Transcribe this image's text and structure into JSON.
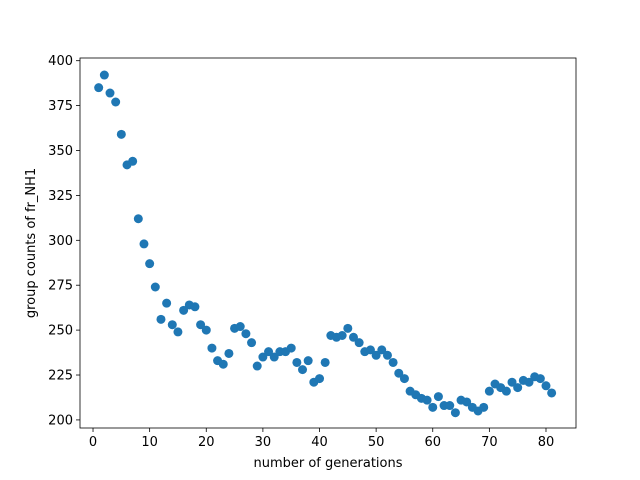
{
  "chart_data": {
    "type": "scatter",
    "title": "",
    "xlabel": "number of generations",
    "ylabel": "group counts of fr_NH1",
    "xlim": [
      -2.3,
      85.3
    ],
    "ylim": [
      195.5,
      401.5
    ],
    "xticks": [
      0,
      10,
      20,
      30,
      40,
      50,
      60,
      70,
      80
    ],
    "yticks": [
      200,
      225,
      250,
      275,
      300,
      325,
      350,
      375,
      400
    ],
    "grid": false,
    "marker_color": "#1f77b4",
    "series": [
      {
        "name": "fr_NH1",
        "x": [
          1,
          2,
          3,
          4,
          5,
          6,
          7,
          8,
          9,
          10,
          11,
          12,
          13,
          14,
          15,
          16,
          17,
          18,
          19,
          20,
          21,
          22,
          23,
          24,
          25,
          26,
          27,
          28,
          29,
          30,
          31,
          32,
          33,
          34,
          35,
          36,
          37,
          38,
          39,
          40,
          41,
          42,
          43,
          44,
          45,
          46,
          47,
          48,
          49,
          50,
          51,
          52,
          53,
          54,
          55,
          56,
          57,
          58,
          59,
          60,
          61,
          62,
          63,
          64,
          65,
          66,
          67,
          68,
          69,
          70,
          71,
          72,
          73,
          74,
          75,
          76,
          77,
          78,
          79,
          80,
          81
        ],
        "y": [
          385,
          392,
          382,
          377,
          359,
          342,
          344,
          312,
          298,
          287,
          274,
          256,
          265,
          253,
          249,
          261,
          264,
          263,
          253,
          250,
          240,
          233,
          231,
          237,
          251,
          252,
          248,
          243,
          230,
          235,
          238,
          235,
          238,
          238,
          240,
          232,
          228,
          233,
          221,
          223,
          232,
          247,
          246,
          247,
          251,
          246,
          243,
          238,
          239,
          236,
          239,
          236,
          232,
          226,
          223,
          216,
          214,
          212,
          211,
          207,
          213,
          208,
          208,
          204,
          211,
          210,
          207,
          205,
          207,
          216,
          220,
          218,
          216,
          221,
          218,
          222,
          221,
          224,
          223,
          219,
          215
        ]
      }
    ]
  }
}
